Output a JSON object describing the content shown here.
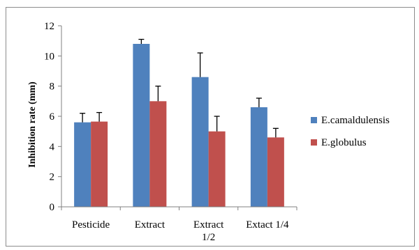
{
  "chart_data": {
    "type": "bar",
    "title": "",
    "xlabel": "",
    "ylabel": "Inhibition rate (mm)",
    "ylim": [
      0,
      12
    ],
    "yticks": [
      0,
      2,
      4,
      6,
      8,
      10,
      12
    ],
    "categories": [
      [
        "Pesticide"
      ],
      [
        "Extract"
      ],
      [
        "Extract",
        "1/2"
      ],
      [
        "Extact 1/4"
      ]
    ],
    "series": [
      {
        "name": "E.camaldulensis",
        "color": "#4f81bd",
        "values": [
          5.6,
          10.8,
          8.6,
          6.6
        ],
        "errors": [
          0.6,
          0.3,
          1.6,
          0.6
        ]
      },
      {
        "name": "E.globulus",
        "color": "#c0504d",
        "values": [
          5.65,
          7.0,
          5.0,
          4.6
        ],
        "errors": [
          0.6,
          1.0,
          1.0,
          0.6
        ]
      }
    ],
    "grid": false,
    "legend_position": "right"
  }
}
